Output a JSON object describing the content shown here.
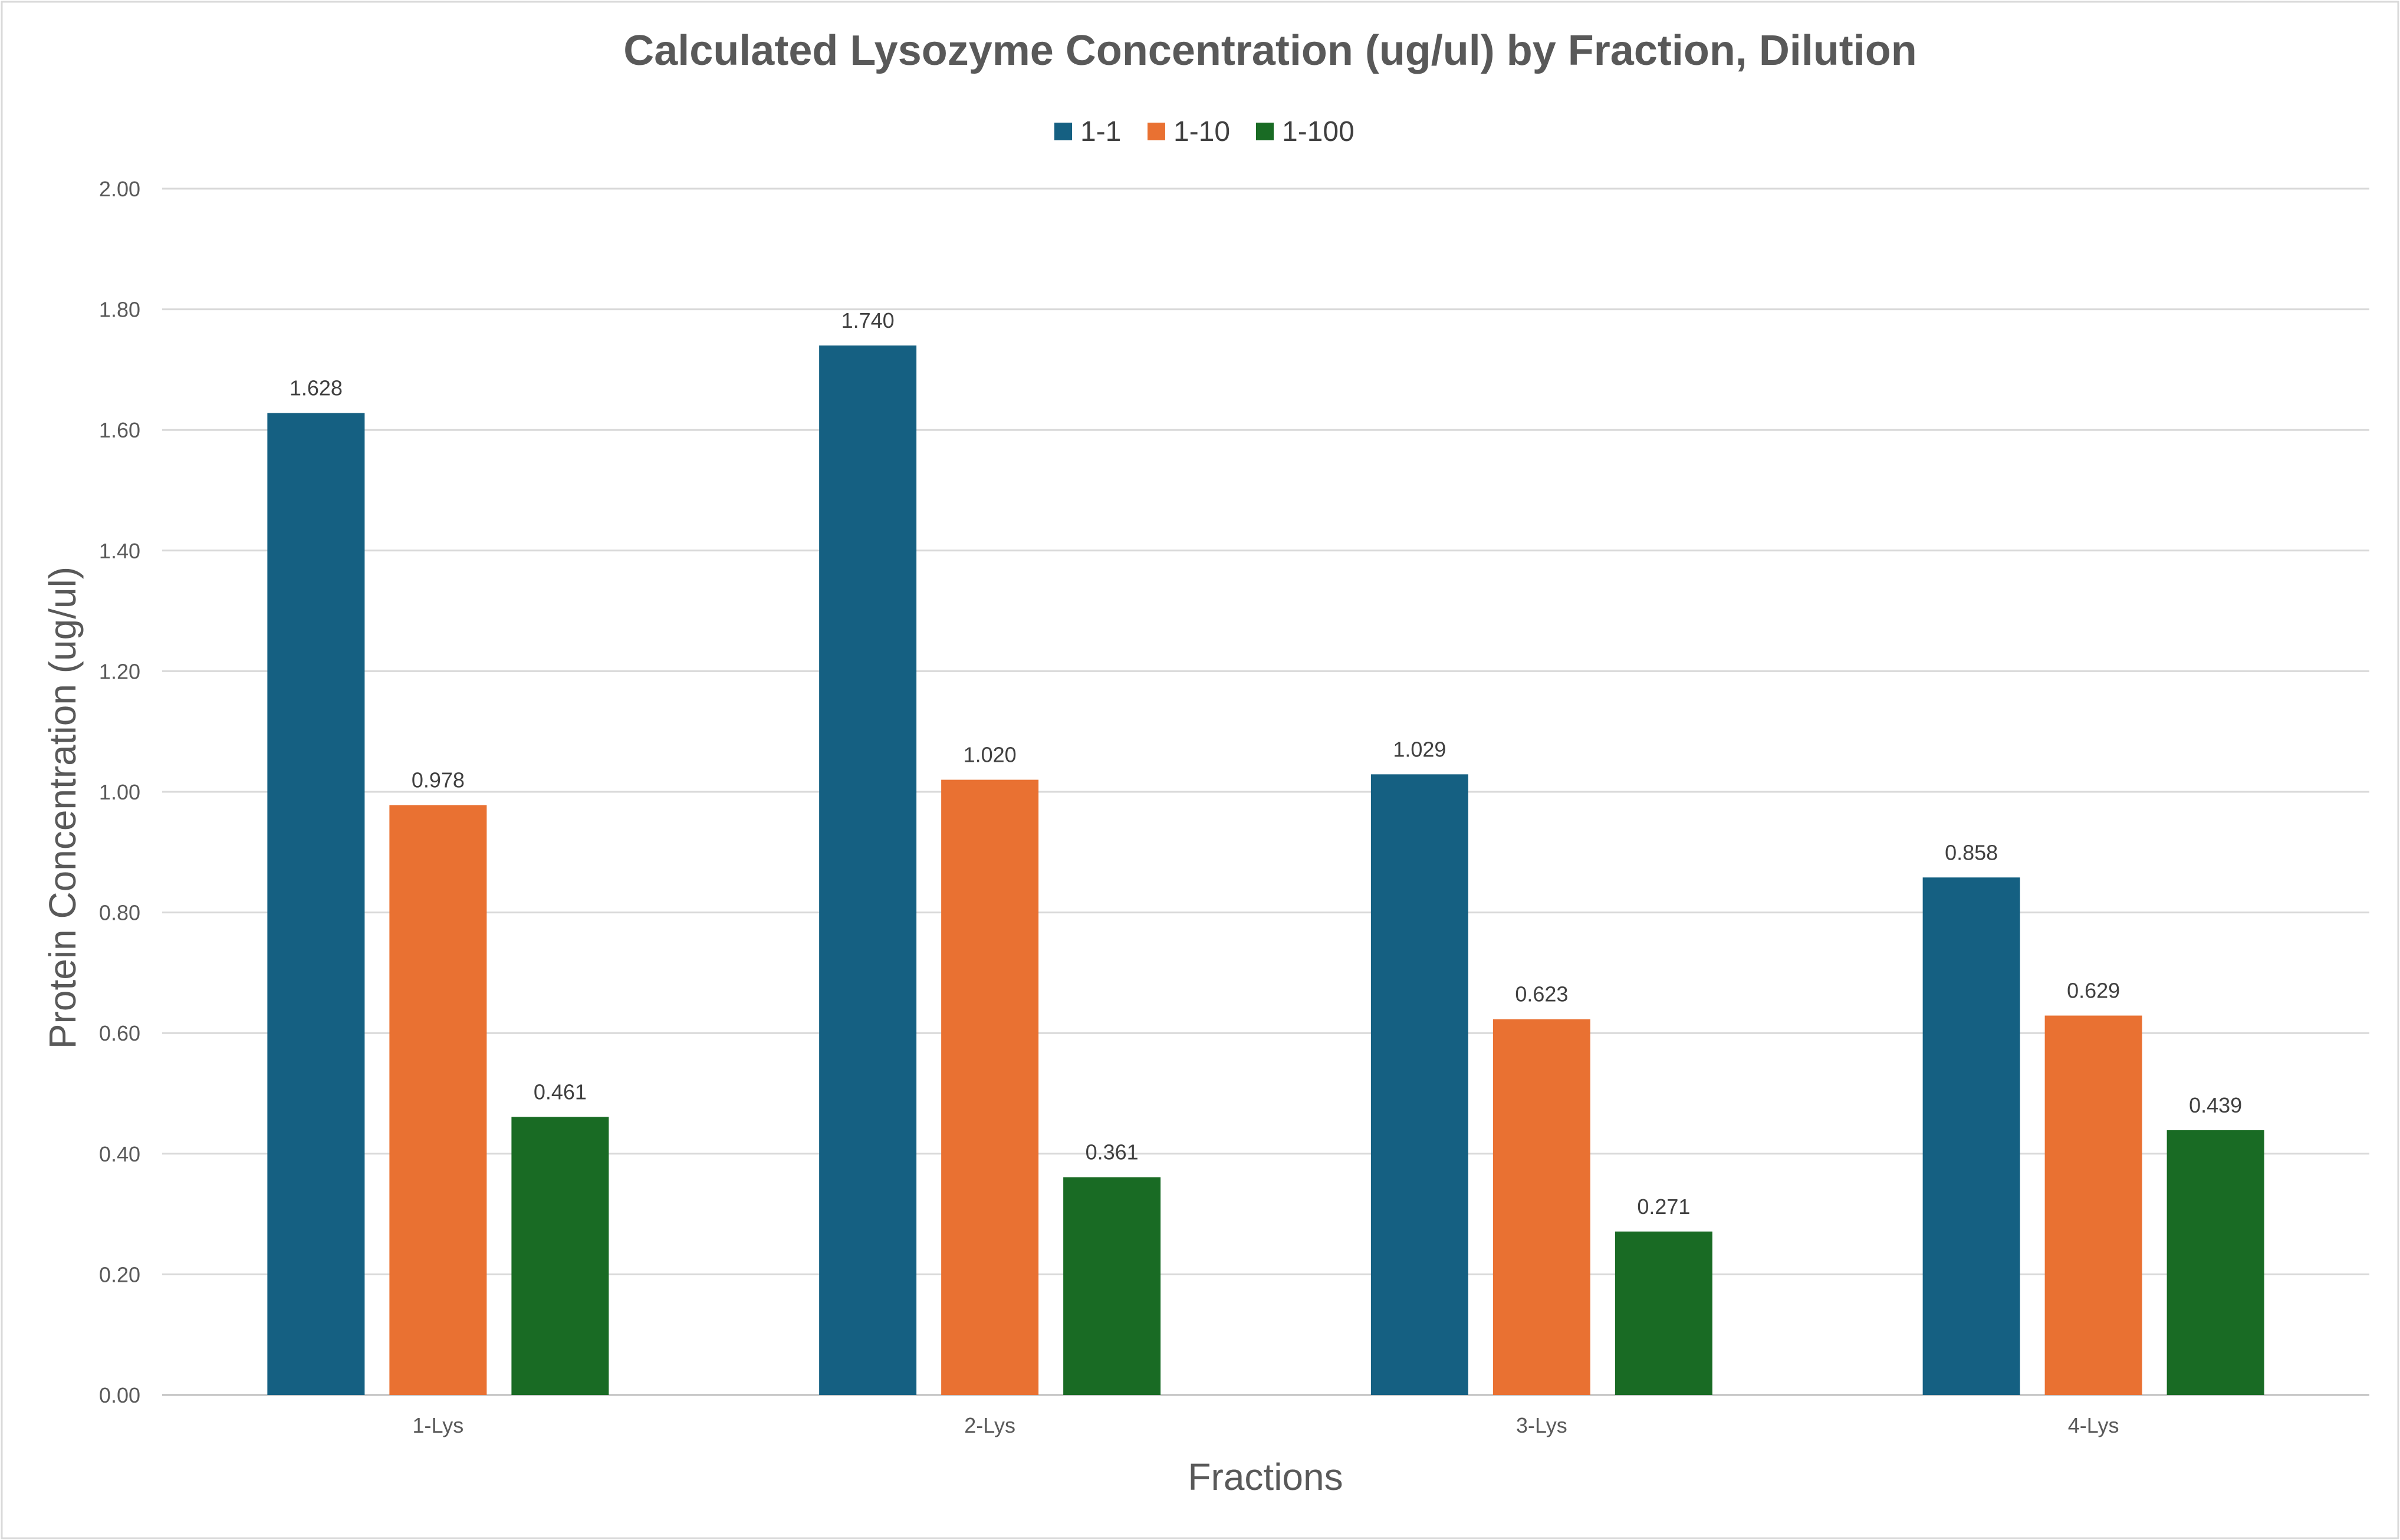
{
  "chart_data": {
    "type": "bar",
    "title": "Calculated Lysozyme Concentration (ug/ul) by Fraction, Dilution",
    "xlabel": "Fractions",
    "ylabel": "Protein Concentration (ug/ul)",
    "ylim": [
      0,
      2
    ],
    "y_ticks": [
      "0.00",
      "0.20",
      "0.40",
      "0.60",
      "0.80",
      "1.00",
      "1.20",
      "1.40",
      "1.60",
      "1.80",
      "2.00"
    ],
    "grid": true,
    "legend_position": "top",
    "categories": [
      "1-Lys",
      "2-Lys",
      "3-Lys",
      "4-Lys"
    ],
    "series": [
      {
        "name": "1-1",
        "color": "#156082",
        "values": [
          1.628,
          1.74,
          1.029,
          0.858
        ],
        "labels": [
          "1.628",
          "1.740",
          "1.029",
          "0.858"
        ]
      },
      {
        "name": "1-10",
        "color": "#E97132",
        "values": [
          0.978,
          1.02,
          0.623,
          0.629
        ],
        "labels": [
          "0.978",
          "1.020",
          "0.623",
          "0.629"
        ]
      },
      {
        "name": "1-100",
        "color": "#196B24",
        "values": [
          0.461,
          0.361,
          0.271,
          0.439
        ],
        "labels": [
          "0.461",
          "0.361",
          "0.271",
          "0.439"
        ]
      }
    ]
  }
}
